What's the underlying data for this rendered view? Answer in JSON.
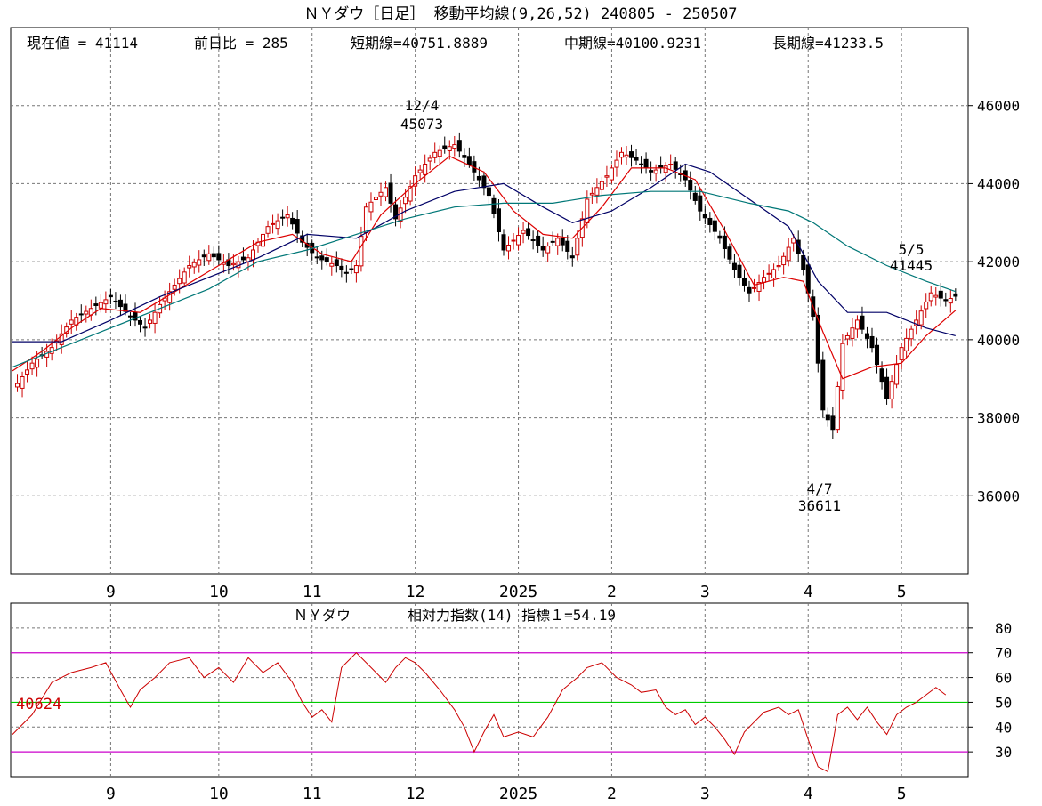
{
  "header": {
    "title": "ＮＹダウ［日足］ 移動平均線(9,26,52)  240805 - 250507",
    "stats": {
      "current": "現在値 = 41114",
      "change": "前日比 = 285",
      "short": "短期線=40751.8889",
      "mid": "中期線=40100.9231",
      "long": "長期線=41233.5"
    }
  },
  "rsi_header": {
    "name": "ＮＹダウ",
    "indicator": "相対力指数(14) 指標１=54.19",
    "marker_value": "40624"
  },
  "colors": {
    "candle_up": "#cc0000",
    "candle_down": "#000000",
    "ma_short": "#dd0000",
    "ma_mid": "#000066",
    "ma_long": "#007777",
    "rsi_line": "#cc0000",
    "rsi_70_30": "#cc00cc",
    "rsi_50": "#00cc00",
    "grid": "#777777"
  },
  "chart_data": [
    {
      "type": "candlestick",
      "title": "ＮＹダウ［日足］ 移動平均線(9,26,52)",
      "ylim": [
        34000,
        48000
      ],
      "y_ticks": [
        "36000",
        "38000",
        "40000",
        "42000",
        "44000",
        "46000"
      ],
      "x_tick_labels": [
        "9",
        "10",
        "11",
        "12",
        "2025",
        "2",
        "3",
        "4",
        "5"
      ],
      "grid": true,
      "annotations": [
        {
          "date": "12/4",
          "value": "45073"
        },
        {
          "date": "4/7",
          "value": "36611"
        },
        {
          "date": "5/5",
          "value": "41445"
        }
      ],
      "close_path": [
        [
          0,
          38700
        ],
        [
          4,
          39400
        ],
        [
          8,
          39800
        ],
        [
          12,
          40500
        ],
        [
          16,
          40800
        ],
        [
          20,
          41100
        ],
        [
          24,
          40600
        ],
        [
          27,
          40300
        ],
        [
          30,
          40900
        ],
        [
          33,
          41400
        ],
        [
          36,
          41900
        ],
        [
          40,
          42200
        ],
        [
          44,
          41900
        ],
        [
          48,
          42100
        ],
        [
          52,
          42900
        ],
        [
          56,
          43200
        ],
        [
          59,
          42500
        ],
        [
          62,
          42100
        ],
        [
          66,
          41900
        ],
        [
          68,
          41700
        ],
        [
          70,
          41900
        ],
        [
          72,
          43400
        ],
        [
          76,
          43900
        ],
        [
          78,
          43100
        ],
        [
          82,
          44200
        ],
        [
          86,
          44800
        ],
        [
          90,
          45000
        ],
        [
          93,
          44500
        ],
        [
          97,
          43700
        ],
        [
          100,
          42300
        ],
        [
          104,
          42800
        ],
        [
          108,
          42300
        ],
        [
          111,
          42600
        ],
        [
          114,
          42100
        ],
        [
          117,
          43600
        ],
        [
          121,
          44200
        ],
        [
          124,
          44800
        ],
        [
          127,
          44600
        ],
        [
          130,
          44300
        ],
        [
          134,
          44500
        ],
        [
          137,
          44100
        ],
        [
          140,
          43300
        ],
        [
          144,
          42600
        ],
        [
          147,
          41800
        ],
        [
          150,
          41200
        ],
        [
          153,
          41600
        ],
        [
          156,
          41900
        ],
        [
          159,
          42600
        ],
        [
          161,
          41800
        ],
        [
          163,
          40600
        ],
        [
          165,
          38200
        ],
        [
          167,
          37700
        ],
        [
          169,
          39900
        ],
        [
          172,
          40500
        ],
        [
          175,
          39800
        ],
        [
          178,
          38500
        ],
        [
          181,
          39800
        ],
        [
          184,
          40500
        ],
        [
          187,
          41200
        ],
        [
          190,
          41000
        ],
        [
          192,
          41114
        ]
      ],
      "series": [
        {
          "name": "短期線",
          "current": 40751.8889,
          "points": [
            [
              0,
              39200
            ],
            [
              6,
              39700
            ],
            [
              12,
              40300
            ],
            [
              18,
              40800
            ],
            [
              26,
              40700
            ],
            [
              34,
              41300
            ],
            [
              42,
              41900
            ],
            [
              50,
              42500
            ],
            [
              57,
              42700
            ],
            [
              63,
              42200
            ],
            [
              69,
              42000
            ],
            [
              75,
              43200
            ],
            [
              82,
              44000
            ],
            [
              89,
              44700
            ],
            [
              96,
              44300
            ],
            [
              102,
              43300
            ],
            [
              108,
              42700
            ],
            [
              114,
              42600
            ],
            [
              120,
              43400
            ],
            [
              126,
              44400
            ],
            [
              133,
              44400
            ],
            [
              139,
              44100
            ],
            [
              145,
              42800
            ],
            [
              151,
              41400
            ],
            [
              157,
              41600
            ],
            [
              161,
              41500
            ],
            [
              165,
              40200
            ],
            [
              169,
              39000
            ],
            [
              175,
              39300
            ],
            [
              181,
              39400
            ],
            [
              186,
              40100
            ],
            [
              192,
              40752
            ]
          ]
        },
        {
          "name": "中期線",
          "current": 40100.9231,
          "points": [
            [
              0,
              39950
            ],
            [
              10,
              39950
            ],
            [
              20,
              40500
            ],
            [
              30,
              41100
            ],
            [
              40,
              41600
            ],
            [
              50,
              42100
            ],
            [
              60,
              42700
            ],
            [
              70,
              42600
            ],
            [
              80,
              43300
            ],
            [
              90,
              43800
            ],
            [
              100,
              44000
            ],
            [
              108,
              43400
            ],
            [
              114,
              43000
            ],
            [
              122,
              43300
            ],
            [
              130,
              43900
            ],
            [
              137,
              44500
            ],
            [
              142,
              44300
            ],
            [
              150,
              43600
            ],
            [
              158,
              42900
            ],
            [
              164,
              41500
            ],
            [
              170,
              40700
            ],
            [
              178,
              40700
            ],
            [
              186,
              40300
            ],
            [
              192,
              40101
            ]
          ]
        },
        {
          "name": "長期線",
          "current": 41233.5,
          "points": [
            [
              0,
              39300
            ],
            [
              10,
              39800
            ],
            [
              20,
              40300
            ],
            [
              30,
              40800
            ],
            [
              40,
              41300
            ],
            [
              50,
              42000
            ],
            [
              60,
              42300
            ],
            [
              70,
              42700
            ],
            [
              80,
              43100
            ],
            [
              90,
              43400
            ],
            [
              100,
              43500
            ],
            [
              110,
              43500
            ],
            [
              120,
              43700
            ],
            [
              130,
              43800
            ],
            [
              140,
              43800
            ],
            [
              150,
              43500
            ],
            [
              158,
              43300
            ],
            [
              163,
              43000
            ],
            [
              170,
              42400
            ],
            [
              178,
              41900
            ],
            [
              186,
              41500
            ],
            [
              192,
              41234
            ]
          ]
        }
      ]
    },
    {
      "type": "line",
      "title": "ＮＹダウ 相対力指数(14) 指標１=54.19",
      "ylim": [
        20,
        90
      ],
      "y_ticks": [
        "30",
        "40",
        "50",
        "60",
        "70",
        "80"
      ],
      "reference_lines": [
        70,
        50,
        30
      ],
      "x_tick_labels": [
        "9",
        "10",
        "11",
        "12",
        "2025",
        "2",
        "3",
        "4",
        "5"
      ],
      "grid": true,
      "series": [
        {
          "points": [
            [
              0,
              37
            ],
            [
              4,
              45
            ],
            [
              8,
              58
            ],
            [
              12,
              62
            ],
            [
              16,
              64
            ],
            [
              19,
              66
            ],
            [
              22,
              55
            ],
            [
              24,
              48
            ],
            [
              26,
              55
            ],
            [
              29,
              60
            ],
            [
              32,
              66
            ],
            [
              36,
              68
            ],
            [
              39,
              60
            ],
            [
              42,
              64
            ],
            [
              45,
              58
            ],
            [
              48,
              68
            ],
            [
              51,
              62
            ],
            [
              54,
              66
            ],
            [
              57,
              58
            ],
            [
              59,
              50
            ],
            [
              61,
              44
            ],
            [
              63,
              47
            ],
            [
              65,
              42
            ],
            [
              67,
              64
            ],
            [
              70,
              70
            ],
            [
              73,
              64
            ],
            [
              76,
              58
            ],
            [
              78,
              64
            ],
            [
              80,
              68
            ],
            [
              82,
              66
            ],
            [
              84,
              62
            ],
            [
              87,
              55
            ],
            [
              90,
              47
            ],
            [
              92,
              40
            ],
            [
              94,
              30
            ],
            [
              96,
              38
            ],
            [
              98,
              45
            ],
            [
              100,
              36
            ],
            [
              103,
              38
            ],
            [
              106,
              36
            ],
            [
              109,
              44
            ],
            [
              112,
              55
            ],
            [
              115,
              60
            ],
            [
              117,
              64
            ],
            [
              120,
              66
            ],
            [
              123,
              60
            ],
            [
              126,
              57
            ],
            [
              128,
              54
            ],
            [
              131,
              55
            ],
            [
              133,
              48
            ],
            [
              135,
              45
            ],
            [
              137,
              47
            ],
            [
              139,
              41
            ],
            [
              141,
              44
            ],
            [
              143,
              40
            ],
            [
              145,
              35
            ],
            [
              147,
              29
            ],
            [
              149,
              38
            ],
            [
              151,
              42
            ],
            [
              153,
              46
            ],
            [
              156,
              48
            ],
            [
              158,
              45
            ],
            [
              160,
              47
            ],
            [
              162,
              35
            ],
            [
              164,
              24
            ],
            [
              166,
              22
            ],
            [
              168,
              45
            ],
            [
              170,
              48
            ],
            [
              172,
              43
            ],
            [
              174,
              48
            ],
            [
              176,
              42
            ],
            [
              178,
              37
            ],
            [
              180,
              45
            ],
            [
              182,
              48
            ],
            [
              184,
              50
            ],
            [
              186,
              53
            ],
            [
              188,
              56
            ],
            [
              190,
              53
            ]
          ]
        }
      ]
    }
  ]
}
